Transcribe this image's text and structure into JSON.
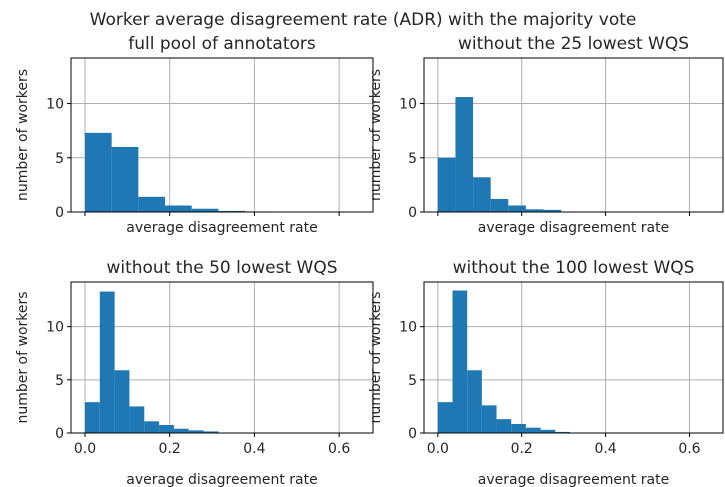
{
  "figure": {
    "suptitle": "Worker average disagreement rate (ADR) with the majority vote"
  },
  "chart_data": [
    {
      "type": "bar",
      "title": "full pool of annotators",
      "xlabel": "average disagreement rate",
      "ylabel": "number of workers",
      "xlim": [
        -0.033,
        0.68
      ],
      "ylim": [
        0,
        14.2
      ],
      "xticks": [
        0.0,
        0.2,
        0.4,
        0.6
      ],
      "yticks": [
        0,
        5,
        10
      ],
      "show_x_ticklabels": false,
      "grid": true,
      "bar_color": "#1f77b4",
      "bin_edges": [
        0.0,
        0.063,
        0.126,
        0.189,
        0.252,
        0.315,
        0.378,
        0.441,
        0.504,
        0.567,
        0.63
      ],
      "values": [
        7.3,
        6.0,
        1.4,
        0.6,
        0.3,
        0.1,
        0.05,
        0.0,
        0.0,
        0.0
      ]
    },
    {
      "type": "bar",
      "title": "without the 25 lowest WQS",
      "xlabel": "average disagreement rate",
      "ylabel": "number of workers",
      "xlim": [
        -0.033,
        0.68
      ],
      "ylim": [
        0,
        14.2
      ],
      "xticks": [
        0.0,
        0.2,
        0.4,
        0.6
      ],
      "yticks": [
        0,
        5,
        10
      ],
      "show_x_ticklabels": false,
      "grid": true,
      "bar_color": "#1f77b4",
      "bin_edges": [
        0.0,
        0.042,
        0.084,
        0.126,
        0.168,
        0.21,
        0.252,
        0.294,
        0.336,
        0.378,
        0.42,
        0.462,
        0.504,
        0.546,
        0.588,
        0.63
      ],
      "values": [
        5.0,
        10.6,
        3.2,
        1.2,
        0.6,
        0.25,
        0.2,
        0.0,
        0.0,
        0.0,
        0.0,
        0.0,
        0.0,
        0.0,
        0.0
      ]
    },
    {
      "type": "bar",
      "title": "without the 50 lowest WQS",
      "xlabel": "average disagreement rate",
      "ylabel": "number of workers",
      "xlim": [
        -0.033,
        0.68
      ],
      "ylim": [
        0,
        14.2
      ],
      "xticks": [
        0.0,
        0.2,
        0.4,
        0.6
      ],
      "xticklabels": [
        "0.0",
        "0.2",
        "0.4",
        "0.6"
      ],
      "yticks": [
        0,
        5,
        10
      ],
      "show_x_ticklabels": true,
      "grid": true,
      "bar_color": "#1f77b4",
      "bin_edges": [
        0.0,
        0.035,
        0.07,
        0.105,
        0.14,
        0.175,
        0.21,
        0.245,
        0.28,
        0.315,
        0.35
      ],
      "values": [
        2.9,
        13.3,
        5.9,
        2.5,
        1.1,
        0.75,
        0.4,
        0.25,
        0.15,
        0.0
      ]
    },
    {
      "type": "bar",
      "title": "without the 100 lowest WQS",
      "xlabel": "average disagreement rate",
      "ylabel": "number of workers",
      "xlim": [
        -0.033,
        0.68
      ],
      "ylim": [
        0,
        14.2
      ],
      "xticks": [
        0.0,
        0.2,
        0.4,
        0.6
      ],
      "xticklabels": [
        "0.0",
        "0.2",
        "0.4",
        "0.6"
      ],
      "yticks": [
        0,
        5,
        10
      ],
      "show_x_ticklabels": true,
      "grid": true,
      "bar_color": "#1f77b4",
      "bin_edges": [
        0.0,
        0.035,
        0.07,
        0.105,
        0.14,
        0.175,
        0.21,
        0.245,
        0.28,
        0.315,
        0.35
      ],
      "values": [
        2.9,
        13.4,
        5.9,
        2.6,
        1.3,
        0.85,
        0.5,
        0.3,
        0.1,
        0.0
      ]
    }
  ]
}
